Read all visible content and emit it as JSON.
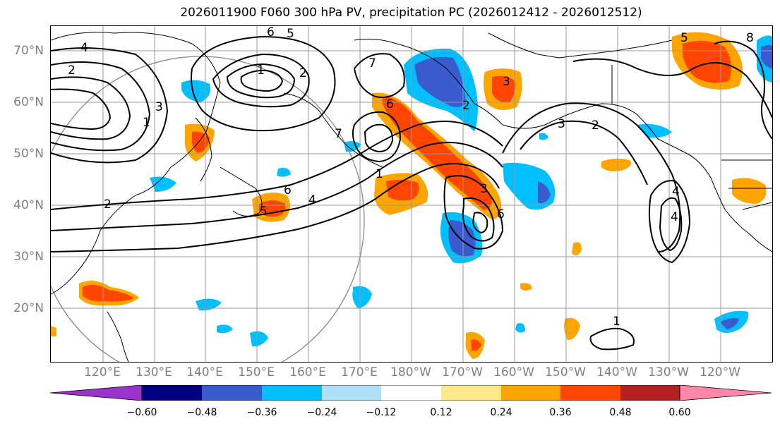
{
  "title": "2026011900 F060 300 hPa PV, precipitation PC (2026012412 - 2026012512)",
  "lat_labels": [
    "70°N",
    "60°N",
    "50°N",
    "40°N",
    "30°N",
    "20°N"
  ],
  "lon_labels": [
    "120°E",
    "130°E",
    "140°E",
    "150°E",
    "160°E",
    "170°E",
    "180°W",
    "170°W",
    "160°W",
    "150°W",
    "140°W",
    "130°W",
    "120°W"
  ],
  "colorbar": {
    "ticks": [
      "−0.60",
      "−0.48",
      "−0.36",
      "−0.24",
      "−0.12",
      "0.12",
      "0.24",
      "0.36",
      "0.48",
      "0.60"
    ],
    "colors": [
      "#9933cc",
      "#000080",
      "#3a5bcd",
      "#00bfff",
      "#b0e0f8",
      "#ffffff",
      "#ffe88a",
      "#ffa500",
      "#ff4500",
      "#b22222",
      "#ff88aa"
    ]
  },
  "contour_labels": [
    "1",
    "2",
    "3",
    "4",
    "5",
    "6",
    "7"
  ],
  "map_labels": {
    "low_west_center": "1",
    "aleutian_center": "1",
    "pacific_east_center": "4",
    "hawaii_center": "1",
    "ring_label_a": "6",
    "ring_label_b": "5",
    "ring_label_c": "4",
    "ring_label_d": "2",
    "ring_label_e": "3",
    "ring_label_f": "7",
    "east_ring_3": "3",
    "jet_label_6": "6",
    "jet_label_5": "5",
    "jet_label_4": "4",
    "jet_label_1": "1",
    "jet_label_2": "2",
    "jet_label_7": "7",
    "gulf_label_3": "3",
    "gulf_label_2": "2",
    "alaska_label_5": "5",
    "alaska_label_8": "8",
    "trough_label_3": "3",
    "trough_label_6": "6",
    "trough_label_2": "2",
    "west_label_4": "4",
    "west_label_2": "2"
  }
}
